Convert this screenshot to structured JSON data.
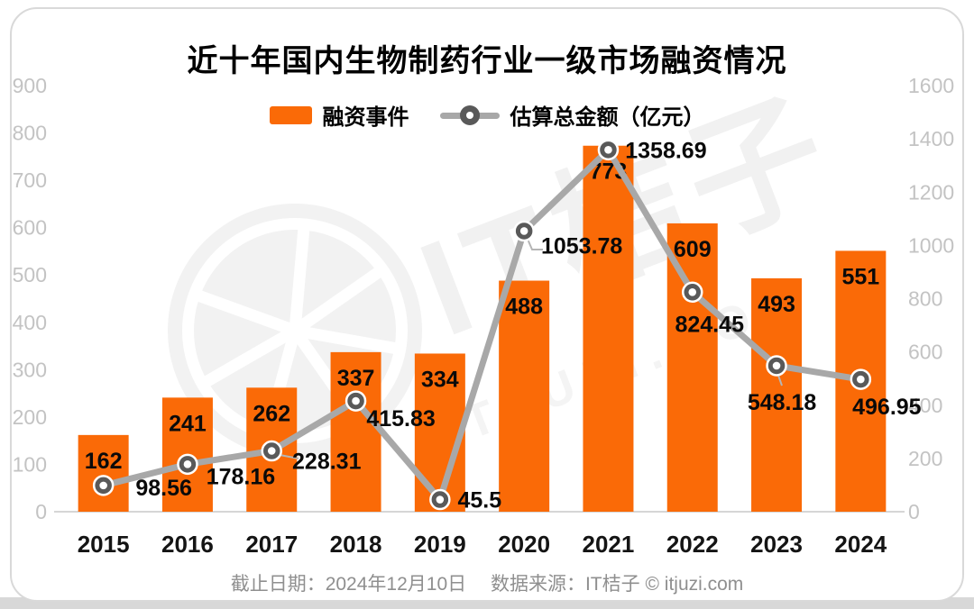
{
  "page": {
    "title": "近十年国内生物制药行业一级市场融资情况",
    "footer": "截止日期：2024年12月10日　 数据来源：IT桔子 © itjuzi.com",
    "watermark_text": "IT桔子",
    "watermark_subtext": "ITJUZI.COM",
    "watermark_logo": "itjuzi-citrus-wheel-logo"
  },
  "legend": {
    "bar_label": "融资事件",
    "line_label": "估算总金额（亿元）"
  },
  "colors": {
    "bar": "#FA6A07",
    "line": "#A8A8A8",
    "marker": "#595959",
    "axis_text": "#C3C3C3",
    "axis_line": "#D6D6D6",
    "label_text": "#0A0A0A",
    "leader_line": "#B5B5B5",
    "watermark": "#F2F2F2"
  },
  "chart_data": {
    "type": "bar",
    "title": "近十年国内生物制药行业一级市场融资情况",
    "categories": [
      "2015",
      "2016",
      "2017",
      "2018",
      "2019",
      "2020",
      "2021",
      "2022",
      "2023",
      "2024"
    ],
    "series": [
      {
        "name": "融资事件",
        "type": "bar",
        "axis": "left",
        "values": [
          162,
          241,
          262,
          337,
          334,
          488,
          773,
          609,
          493,
          551
        ]
      },
      {
        "name": "估算总金额（亿元）",
        "type": "line",
        "axis": "right",
        "values": [
          98.56,
          178.16,
          228.31,
          415.83,
          45.5,
          1053.78,
          1358.69,
          824.45,
          548.18,
          496.95
        ]
      }
    ],
    "left_axis": {
      "min": 0,
      "max": 900,
      "step": 100
    },
    "right_axis": {
      "min": 0,
      "max": 1600,
      "step": 200
    },
    "grid": false,
    "legend_position": "top"
  }
}
